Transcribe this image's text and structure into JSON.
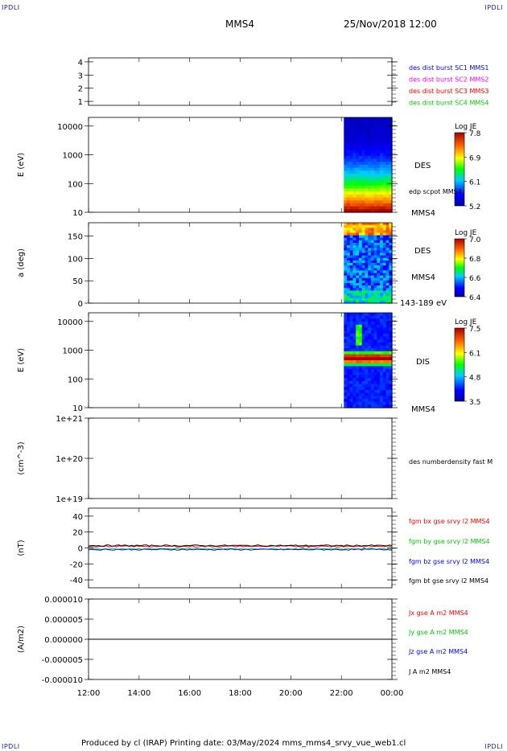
{
  "corner_text": "IPDLI",
  "header": {
    "spacecraft": "MMS4",
    "datetime": "25/Nov/2018 12:00"
  },
  "footer": {
    "text": "Produced by cl (IRAP)   Printing date: 03/May/2024   mms_mms4_srvy_vue_web1.cl"
  },
  "x_axis": {
    "tick_labels": [
      "12:00",
      "14:00",
      "16:00",
      "18:00",
      "20:00",
      "22:00",
      "00:00"
    ],
    "range_hours": [
      12,
      24
    ]
  },
  "colors": {
    "blue": "#0000ff",
    "magenta": "#ff00ff",
    "red": "#ff0000",
    "green": "#00cc00",
    "black": "#000000"
  },
  "chart_data": [
    {
      "id": "p1",
      "type": "line",
      "ylim": [
        0.7,
        4.3
      ],
      "yticks": [
        "1",
        "2",
        "3",
        "4"
      ],
      "legend": [
        {
          "text": "des dist burst SC1 MMS1",
          "color": "#0000ff"
        },
        {
          "text": "des dist burst SC2 MMS2",
          "color": "#ff00ff"
        },
        {
          "text": "des dist burst SC3 MMS3",
          "color": "#ff0000"
        },
        {
          "text": "des dist burst SC4 MMS4",
          "color": "#00cc00"
        }
      ]
    },
    {
      "id": "p2",
      "type": "heatmap",
      "ylabel": "E (eV)",
      "ylog": true,
      "ylim": [
        10,
        20000
      ],
      "yticks": [
        "10",
        "100",
        "1000",
        "10000"
      ],
      "data_start_hour": 22.1,
      "right_labels": [
        "DES",
        "edp scpot MMS4",
        "MMS4"
      ],
      "colorbar": {
        "title": "Log JE",
        "ticks": [
          "7.8",
          "6.9",
          "6.1",
          "5.2"
        ],
        "range": [
          5.2,
          7.8
        ]
      }
    },
    {
      "id": "p3",
      "type": "heatmap",
      "ylabel": "a (deg)",
      "ylim": [
        0,
        180
      ],
      "yticks": [
        "0",
        "50",
        "100",
        "150"
      ],
      "data_start_hour": 22.1,
      "right_labels": [
        "DES",
        "MMS4",
        "143-189 eV"
      ],
      "colorbar": {
        "title": "Log JE",
        "ticks": [
          "7.0",
          "6.8",
          "6.6",
          "6.4"
        ],
        "range": [
          6.4,
          7.0
        ]
      }
    },
    {
      "id": "p4",
      "type": "heatmap",
      "ylabel": "E (eV)",
      "ylog": true,
      "ylim": [
        10,
        20000
      ],
      "yticks": [
        "10",
        "100",
        "1000",
        "10000"
      ],
      "data_start_hour": 22.1,
      "right_labels": [
        "DIS",
        "MMS4"
      ],
      "colorbar": {
        "title": "Log JE",
        "ticks": [
          "7.5",
          "6.1",
          "4.8",
          "3.5"
        ],
        "range": [
          3.5,
          7.5
        ]
      }
    },
    {
      "id": "p5",
      "type": "line",
      "ylabel": "(cm^-3)",
      "ylog": true,
      "ylim": [
        1e+19,
        1e+21
      ],
      "yticks": [
        "1e+19",
        "1e+20",
        "1e+21"
      ],
      "legend": [
        {
          "text": "des numberdensity fast M",
          "color": "#000000"
        }
      ]
    },
    {
      "id": "p6",
      "type": "line",
      "ylabel": "(nT)",
      "ylim": [
        -50,
        50
      ],
      "yticks": [
        "-40",
        "-20",
        "0",
        "20",
        "40"
      ],
      "series": [
        {
          "name": "fgm bx gse srvy l2 MMS4",
          "color": "#ff0000",
          "level": 2
        },
        {
          "name": "fgm by gse srvy l2 MMS4",
          "color": "#00cc00",
          "level": -1
        },
        {
          "name": "fgm bz gse srvy l2 MMS4",
          "color": "#0000ff",
          "level": -2
        },
        {
          "name": "fgm bt gse srvy l2 MMS4",
          "color": "#000000",
          "level": 3
        }
      ]
    },
    {
      "id": "p7",
      "type": "line",
      "ylabel": "(A/m2)",
      "ylim": [
        -1e-05,
        1e-05
      ],
      "yticks": [
        "-0.000010",
        "-0.000005",
        "0.000000",
        "0.000005",
        "0.000010"
      ],
      "series": [
        {
          "name": "Jx gse A m2 MMS4",
          "color": "#ff0000",
          "level": 0
        },
        {
          "name": "Jy gse A m2 MMS4",
          "color": "#00cc00",
          "level": 0
        },
        {
          "name": "Jz gse A m2 MMS4",
          "color": "#0000ff",
          "level": 0
        },
        {
          "name": "J A m2 MMS4",
          "color": "#000000",
          "level": 0
        }
      ]
    }
  ]
}
